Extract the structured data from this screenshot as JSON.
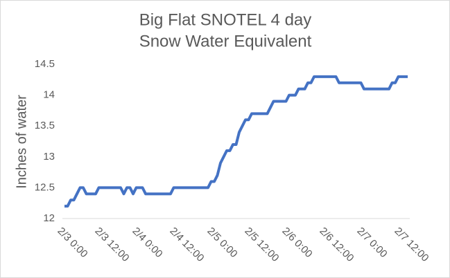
{
  "chart_data": {
    "type": "line",
    "title": [
      "Big Flat SNOTEL 4 day",
      "Snow Water Equivalent"
    ],
    "y_label": "Inches of water",
    "categories": [
      "2/3 0:00",
      null,
      null,
      null,
      null,
      null,
      null,
      null,
      null,
      null,
      null,
      null,
      "2/3 12:00",
      null,
      null,
      null,
      null,
      null,
      null,
      null,
      null,
      null,
      null,
      null,
      "2/4 0:00",
      null,
      null,
      null,
      null,
      null,
      null,
      null,
      null,
      null,
      null,
      null,
      "2/4 12:00",
      null,
      null,
      null,
      null,
      null,
      null,
      null,
      null,
      null,
      null,
      null,
      "2/5 0:00",
      null,
      null,
      null,
      null,
      null,
      null,
      null,
      null,
      null,
      null,
      null,
      "2/5 12:00",
      null,
      null,
      null,
      null,
      null,
      null,
      null,
      null,
      null,
      null,
      null,
      "2/6 0:00",
      null,
      null,
      null,
      null,
      null,
      null,
      null,
      null,
      null,
      null,
      null,
      "2/6 12:00",
      null,
      null,
      null,
      null,
      null,
      null,
      null,
      null,
      null,
      null,
      null,
      "2/7 0:00",
      null,
      null,
      null,
      null,
      null,
      null,
      null,
      null,
      null,
      null,
      null,
      "2/7 12:00",
      null,
      null
    ],
    "series": [
      {
        "name": "Snow Water Equivalent",
        "color": "#4472c4",
        "values": [
          12.2,
          12.2,
          12.3,
          12.3,
          12.4,
          12.5,
          12.5,
          12.4,
          12.4,
          12.4,
          12.4,
          12.5,
          12.5,
          12.5,
          12.5,
          12.5,
          12.5,
          12.5,
          12.5,
          12.4,
          12.5,
          12.5,
          12.4,
          12.5,
          12.5,
          12.5,
          12.4,
          12.4,
          12.4,
          12.4,
          12.4,
          12.4,
          12.4,
          12.4,
          12.4,
          12.5,
          12.5,
          12.5,
          12.5,
          12.5,
          12.5,
          12.5,
          12.5,
          12.5,
          12.5,
          12.5,
          12.5,
          12.6,
          12.6,
          12.7,
          12.9,
          13.0,
          13.1,
          13.1,
          13.2,
          13.2,
          13.4,
          13.5,
          13.6,
          13.6,
          13.7,
          13.7,
          13.7,
          13.7,
          13.7,
          13.7,
          13.8,
          13.9,
          13.9,
          13.9,
          13.9,
          13.9,
          14.0,
          14.0,
          14.0,
          14.1,
          14.1,
          14.1,
          14.2,
          14.2,
          14.3,
          14.3,
          14.3,
          14.3,
          14.3,
          14.3,
          14.3,
          14.3,
          14.2,
          14.2,
          14.2,
          14.2,
          14.2,
          14.2,
          14.2,
          14.2,
          14.1,
          14.1,
          14.1,
          14.1,
          14.1,
          14.1,
          14.1,
          14.1,
          14.1,
          14.2,
          14.2,
          14.3,
          14.3,
          14.3,
          14.3
        ]
      }
    ],
    "ylim": [
      12,
      14.5
    ],
    "yticks": [
      12,
      12.5,
      13,
      13.5,
      14,
      14.5
    ],
    "grid": false,
    "legend": false
  }
}
